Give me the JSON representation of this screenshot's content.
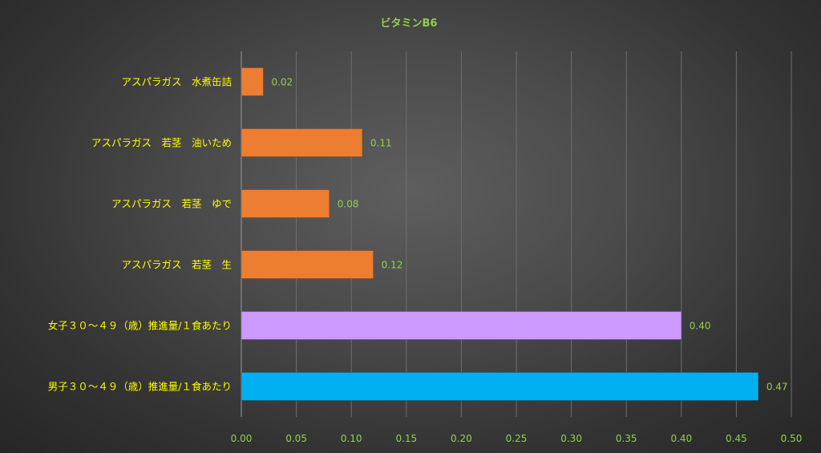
{
  "chart_data": {
    "type": "bar",
    "orientation": "horizontal",
    "title": "ビタミンB6",
    "xlabel": "",
    "ylabel": "",
    "xlim": [
      0,
      0.5
    ],
    "x_ticks": [
      "0.00",
      "0.05",
      "0.10",
      "0.15",
      "0.20",
      "0.25",
      "0.30",
      "0.35",
      "0.40",
      "0.45",
      "0.50"
    ],
    "grid": "vertical",
    "legend": "none",
    "categories": [
      "アスパラガス　水煮缶詰",
      "アスパラガス　若茎　油いため",
      "アスパラガス　若茎　ゆで",
      "アスパラガス　若茎　生",
      "女子３０～４９（歳）推進量/１食あたり",
      "男子３０～４９（歳）推進量/１食あたり"
    ],
    "values": [
      0.02,
      0.11,
      0.08,
      0.12,
      0.4,
      0.47
    ],
    "value_labels": [
      "0.02",
      "0.11",
      "0.08",
      "0.12",
      "0.40",
      "0.47"
    ],
    "bar_colors": [
      "#ED7D31",
      "#ED7D31",
      "#ED7D31",
      "#ED7D31",
      "#CC99FF",
      "#00B0F0"
    ]
  },
  "colors": {
    "title": "#92D050",
    "category_label": "#FFFF00",
    "tick_label": "#92D050",
    "data_label": "#92D050",
    "gridline": "#6E6E6E",
    "axis": "#9A9A9A"
  }
}
